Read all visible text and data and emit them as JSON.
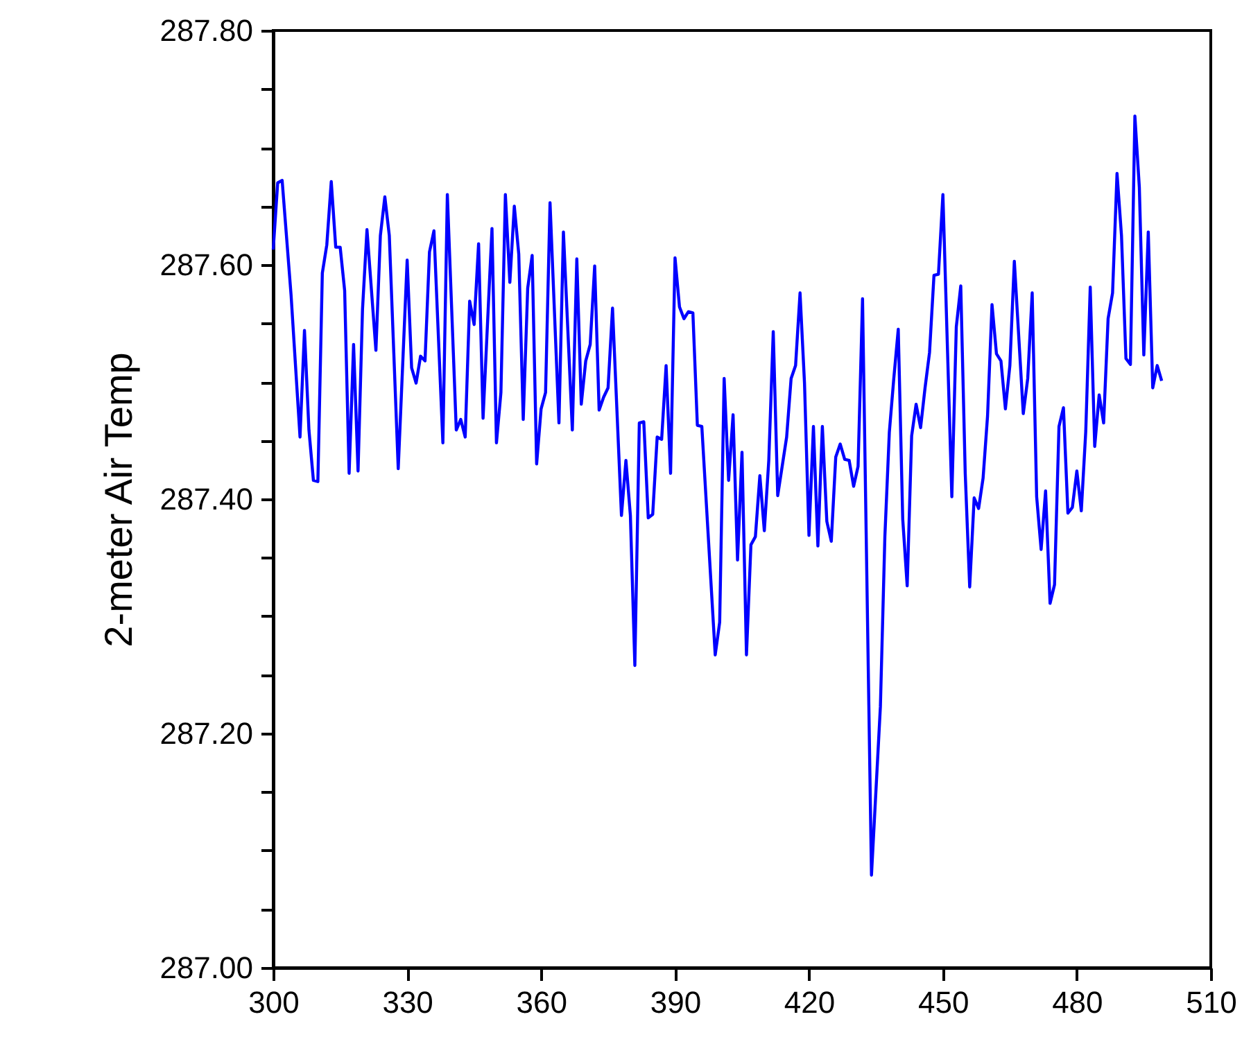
{
  "chart_data": {
    "type": "line",
    "ylabel": "2-meter Air Temp",
    "x": [
      300,
      301,
      302,
      304,
      306,
      307,
      308,
      309,
      310,
      311,
      312,
      313,
      314,
      315,
      316,
      317,
      318,
      319,
      320,
      321,
      323,
      324,
      325,
      326,
      328,
      330,
      331,
      332,
      333,
      334,
      335,
      336,
      338,
      339,
      341,
      342,
      343,
      344,
      345,
      346,
      347,
      349,
      350,
      351,
      352,
      353,
      354,
      355,
      356,
      357,
      358,
      359,
      360,
      361,
      362,
      364,
      365,
      367,
      368,
      369,
      370,
      371,
      372,
      373,
      374,
      375,
      376,
      378,
      379,
      380,
      381,
      382,
      383,
      384,
      385,
      386,
      387,
      388,
      389,
      390,
      391,
      392,
      393,
      394,
      395,
      396,
      399,
      400,
      401,
      402,
      403,
      404,
      405,
      406,
      407,
      408,
      409,
      410,
      411,
      412,
      413,
      415,
      416,
      417,
      418,
      419,
      420,
      421,
      422,
      423,
      424,
      425,
      426,
      427,
      428,
      429,
      430,
      431,
      432,
      434,
      436,
      437,
      438,
      439,
      440,
      441,
      442,
      443,
      444,
      445,
      446,
      447,
      448,
      449,
      450,
      452,
      453,
      454,
      455,
      456,
      457,
      458,
      459,
      460,
      461,
      462,
      463,
      464,
      465,
      466,
      468,
      469,
      470,
      471,
      472,
      473,
      474,
      475,
      476,
      477,
      478,
      479,
      480,
      481,
      482,
      483,
      484,
      485,
      486,
      487,
      488,
      489,
      490,
      491,
      492,
      493,
      494,
      495,
      496,
      497,
      498,
      499
    ],
    "series": [
      {
        "color": "#0000ff",
        "values": [
          287.613,
          287.67,
          287.672,
          287.574,
          287.453,
          287.544,
          287.459,
          287.416,
          287.415,
          287.593,
          287.617,
          287.671,
          287.615,
          287.615,
          287.578,
          287.422,
          287.532,
          287.424,
          287.562,
          287.63,
          287.527,
          287.625,
          287.658,
          287.625,
          287.426,
          287.604,
          287.512,
          287.499,
          287.522,
          287.518,
          287.611,
          287.629,
          287.448,
          287.66,
          287.459,
          287.468,
          287.453,
          287.569,
          287.549,
          287.618,
          287.469,
          287.631,
          287.448,
          287.491,
          287.66,
          287.585,
          287.65,
          287.609,
          287.468,
          287.58,
          287.608,
          287.43,
          287.477,
          287.491,
          287.653,
          287.465,
          287.628,
          287.459,
          287.605,
          287.481,
          287.518,
          287.532,
          287.599,
          287.476,
          287.487,
          287.495,
          287.563,
          287.386,
          287.433,
          287.386,
          287.258,
          287.465,
          287.466,
          287.384,
          287.387,
          287.453,
          287.451,
          287.514,
          287.422,
          287.606,
          287.564,
          287.554,
          287.56,
          287.559,
          287.463,
          287.462,
          287.267,
          287.295,
          287.503,
          287.416,
          287.472,
          287.348,
          287.44,
          287.267,
          287.361,
          287.368,
          287.42,
          287.373,
          287.433,
          287.543,
          287.403,
          287.453,
          287.503,
          287.514,
          287.576,
          287.499,
          287.369,
          287.462,
          287.36,
          287.462,
          287.381,
          287.364,
          287.436,
          287.447,
          287.434,
          287.433,
          287.411,
          287.428,
          287.571,
          287.079,
          287.223,
          287.368,
          287.457,
          287.503,
          287.545,
          287.383,
          287.326,
          287.454,
          287.481,
          287.461,
          287.495,
          287.525,
          287.591,
          287.592,
          287.66,
          287.402,
          287.547,
          287.582,
          287.422,
          287.325,
          287.401,
          287.392,
          287.418,
          287.471,
          287.566,
          287.524,
          287.518,
          287.477,
          287.514,
          287.603,
          287.473,
          287.503,
          287.576,
          287.402,
          287.357,
          287.407,
          287.311,
          287.327,
          287.462,
          287.478,
          287.388,
          287.393,
          287.424,
          287.39,
          287.458,
          287.581,
          287.445,
          287.489,
          287.465,
          287.554,
          287.576,
          287.678,
          287.625,
          287.52,
          287.515,
          287.727,
          287.666,
          287.523,
          287.628,
          287.495,
          287.514,
          287.501
        ]
      }
    ],
    "xlim": [
      300,
      510
    ],
    "xticks": [
      300,
      330,
      360,
      390,
      420,
      450,
      480,
      510
    ],
    "ylim": [
      287.0,
      287.8
    ],
    "yticks": [
      {
        "value": 287.0,
        "label": "287.00"
      },
      {
        "value": 287.05,
        "label": null
      },
      {
        "value": 287.1,
        "label": null
      },
      {
        "value": 287.15,
        "label": null
      },
      {
        "value": 287.2,
        "label": "287.20"
      },
      {
        "value": 287.25,
        "label": null
      },
      {
        "value": 287.3,
        "label": null
      },
      {
        "value": 287.35,
        "label": null
      },
      {
        "value": 287.4,
        "label": "287.40"
      },
      {
        "value": 287.45,
        "label": null
      },
      {
        "value": 287.5,
        "label": null
      },
      {
        "value": 287.55,
        "label": null
      },
      {
        "value": 287.6,
        "label": "287.60"
      },
      {
        "value": 287.65,
        "label": null
      },
      {
        "value": 287.7,
        "label": null
      },
      {
        "value": 287.75,
        "label": null
      },
      {
        "value": 287.8,
        "label": "287.80"
      }
    ],
    "grid": false,
    "line_style": "solid",
    "marker": "none"
  }
}
